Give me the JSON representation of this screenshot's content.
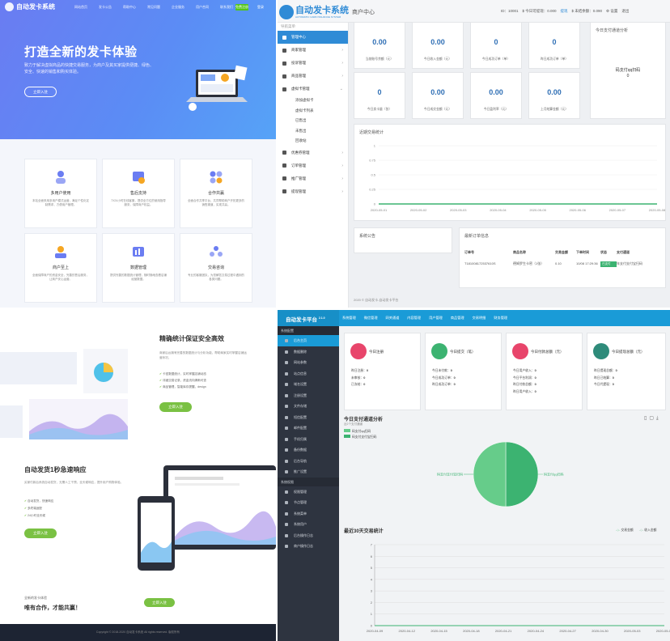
{
  "q1": {
    "brand": "自动发卡系统",
    "menu": [
      "网站首页",
      "发卡公告",
      "帮助中心",
      "常见问题",
      "企业服务",
      "用户合同",
      "联系我们"
    ],
    "register": "免费注册",
    "login": "登录",
    "hero_title": "打造全新的发卡体验",
    "hero_sub": "致力于解决虚拟商品的快捷交易服务，为商户及其买家提供便捷、绿色、安全、快速的销售和购买体验。",
    "hero_btn": "立即入驻",
    "features": [
      {
        "t": "多用户使用",
        "d": "本站全面采用多用户模式运营，满足个性化定制需求，方便用户管理。",
        "icon": "users-icon"
      },
      {
        "t": "售后支持",
        "d": "7X24小时在线客服，提供全方位的使用指导服务，保障商户权益。",
        "icon": "support-icon"
      },
      {
        "t": "合作共赢",
        "d": "全面合作共享平台，共同帮助商户开拓更多的销售渠道，实现共赢。",
        "icon": "cooperation-icon"
      },
      {
        "t": "商户至上",
        "d": "全面保障商户的资金安全，完善的售后服务，让商户安心运营。",
        "icon": "merchant-icon"
      },
      {
        "t": "数据管理",
        "d": "提供完善的数据统计管理，随时随地查看店铺经营数据。",
        "icon": "data-icon"
      },
      {
        "t": "交易咨询",
        "d": "专业的客服团队，为您解答交易过程中遇到的各类问题。",
        "icon": "consult-icon"
      }
    ]
  },
  "q2": {
    "logo_title": "自动发卡系统",
    "logo_sub": "AUTOMATIC CARD ISSUANCE SYSTEM",
    "header": "商户中心",
    "id": "ID：10001",
    "withdraw": "$ 今日可提现：0.000",
    "withdraw_link": "提现",
    "unsettled": "$ 未结余额：0.090",
    "settings": "⚙ 设置",
    "logout": "退出",
    "nav_head": "导航菜单",
    "menu": [
      {
        "l": "管理中心",
        "active": true
      },
      {
        "l": "商家管理",
        "arrow": "›"
      },
      {
        "l": "投诉管理",
        "arrow": "›"
      },
      {
        "l": "商品管理",
        "arrow": "›"
      },
      {
        "l": "虚拟卡管理",
        "arrow": "⌄"
      }
    ],
    "sub": [
      "添加虚拟卡",
      "虚拟卡列表",
      "已售出",
      "未售出",
      "回收站"
    ],
    "menu2": [
      {
        "l": "优惠券管理",
        "arrow": "›"
      },
      {
        "l": "订单管理",
        "arrow": "›"
      },
      {
        "l": "推广管理",
        "arrow": "›"
      },
      {
        "l": "提现管理",
        "arrow": "›"
      }
    ],
    "stats": [
      {
        "v": "0.00",
        "l": "当前账号余额（元）"
      },
      {
        "v": "0.00",
        "l": "今日收入金额（元）"
      },
      {
        "v": "0",
        "l": "今日成功订单（单）"
      },
      {
        "v": "0",
        "l": "昨日成功订单（单）"
      },
      {
        "v": "0",
        "l": "今日卖卡量（张）"
      },
      {
        "v": "0.00",
        "l": "今日成交金额（元）"
      },
      {
        "v": "0.00",
        "l": "今日盈利率（元）"
      },
      {
        "v": "0.00",
        "l": "上月结算金额（元）"
      }
    ],
    "pay_title": "今日支付通道分析",
    "pay_name": "码支付qq扫码",
    "pay_val": "0",
    "chart_title": "近期交易统计",
    "chart_yticks": [
      "1",
      "0.75",
      "0.5",
      "0.25",
      "0"
    ],
    "chart_dates": [
      "2020-05-01",
      "2020-05-02",
      "2020-05-03",
      "2020-05-04",
      "2020-05-05",
      "2020-05-06",
      "2020-05-07",
      "2020-05-08"
    ],
    "notice_title": "系统公告",
    "orders_title": "最新订单信息",
    "orders_head": [
      "订单号",
      "商品名称",
      "交易金额",
      "下单时间",
      "状态",
      "支付通道"
    ],
    "order": {
      "no": "T181008172537610S",
      "name": "德姆罗生卡密（1张）",
      "amount": "0.10",
      "time": "10/08 17:29:36",
      "status": "已支付",
      "channel": "年支付支付宝扫码"
    },
    "footer": "2020 © 自动发卡-自动发卡平台"
  },
  "q3": {
    "title1": "精确统计保证安全高效",
    "desc1": "商家后台拥有完善的数据统计与分析功能，帮助商家实时掌握店铺运营状况。",
    "list1": [
      "卡密数据统计，实时掌握店铺动态",
      "详细交易记录，资金流向清晰可查",
      "商品管理，智能库存提醒，design"
    ],
    "btn1": "立即入驻",
    "title2": "自动发货1秒急速响应",
    "desc2": "买家付款后系统自动发货，无需人工干预，全天候响应，提升用户购物体验。",
    "list2": [
      "自动发货，快速响应",
      "多终端适配",
      "24小时全天候"
    ],
    "btn2": "立即入驻",
    "bottom_sub": "全新的发卡体验",
    "bottom_title": "唯有合作，才能共赢！",
    "btn3": "立即入驻",
    "footer": "Copyright © 2018-2020 自动发卡系统 All rights reserved. 版权所有"
  },
  "q4": {
    "brand": "自动发卡平台",
    "version": "2.1.0",
    "menu": [
      "系统管理",
      "微信管理",
      "网关通道",
      "内容管理",
      "用户管理",
      "商品管理",
      "交易明细",
      "财务管理"
    ],
    "sec1": "系统配置",
    "items1": [
      "后台主页",
      "数据删除",
      "网站参数",
      "站点信息",
      "域名设置",
      "注册设置",
      "文件存储",
      "短信配置",
      "邮件配置",
      "手机归属",
      "备份数据",
      "后台导航",
      "推广设置"
    ],
    "sec2": "系统权限",
    "items2": [
      "权限管理",
      "节点管理",
      "系统菜单",
      "系统用户",
      "后台操作日志",
      "商户操作日志"
    ],
    "boxes": [
      {
        "t": "今日注册",
        "rows": [
          [
            "昨日注册：",
            "0"
          ],
          [
            "未审核：",
            "0"
          ],
          [
            "已冻结：",
            "0"
          ]
        ],
        "color": "#e8456b"
      },
      {
        "t": "今日提交（笔）",
        "rows": [
          [
            "今日未付款：",
            "0"
          ],
          [
            "今日成功订单：",
            "0"
          ],
          [
            "昨日成功订单：",
            "0"
          ]
        ],
        "color": "#3cb371"
      },
      {
        "t": "今日付款总额（元）",
        "rows": [
          [
            "今日用户收入：",
            "0"
          ],
          [
            "今日平台利润：",
            "0"
          ],
          [
            "昨日付款总额：",
            "0"
          ],
          [
            "昨日用户收入：",
            "0"
          ]
        ],
        "color": "#e8456b"
      },
      {
        "t": "今日提现总额（元）",
        "rows": [
          [
            "昨日提现总额：",
            "0"
          ],
          [
            "昨日已结算：",
            "0"
          ],
          [
            "今日代提现：",
            "0"
          ]
        ],
        "color": "#2e8b7a"
      }
    ],
    "pay_title": "今日支付通道分析",
    "pay_sub": "近2个支付通道",
    "pay_legend": [
      "码支付qq扫码",
      "码支付支付宝扫码"
    ],
    "slice_labels": [
      "码支付支付宝扫码",
      "码支付qq扫码"
    ],
    "trend_title": "最近30天交易统计",
    "trend_legend": [
      "交易金额",
      "收入金额"
    ],
    "trend_y": [
      "7",
      "6",
      "5",
      "4",
      "3",
      "2",
      "1",
      "0"
    ],
    "trend_dates": [
      "2020-04-09",
      "2020-04-12",
      "2020-04-15",
      "2020-04-18",
      "2020-04-21",
      "2020-04-24",
      "2020-04-27",
      "2020-04-30",
      "2020-05-03",
      "2020-05-06"
    ]
  },
  "chart_data": [
    {
      "type": "line",
      "title": "近期交易统计",
      "x": [
        "2020-05-01",
        "2020-05-02",
        "2020-05-03",
        "2020-05-04",
        "2020-05-05",
        "2020-05-06",
        "2020-05-07",
        "2020-05-08"
      ],
      "series": [
        {
          "values": [
            0,
            0,
            0,
            0,
            0,
            0,
            0,
            0
          ]
        }
      ],
      "ylim": [
        0,
        1
      ]
    },
    {
      "type": "pie",
      "title": "今日支付通道分析",
      "categories": [
        "码支付支付宝扫码",
        "码支付qq扫码"
      ],
      "values": [
        50,
        50
      ]
    },
    {
      "type": "line",
      "title": "最近30天交易统计",
      "x": [
        "2020-04-09",
        "2020-04-12",
        "2020-04-15",
        "2020-04-18",
        "2020-04-21",
        "2020-04-24",
        "2020-04-27",
        "2020-04-30",
        "2020-05-03",
        "2020-05-06"
      ],
      "series": [
        {
          "name": "交易金额",
          "values": [
            0,
            0,
            0,
            0,
            0,
            0,
            0,
            0,
            0,
            0
          ]
        },
        {
          "name": "收入金额",
          "values": [
            0,
            0,
            0,
            0,
            0,
            0,
            0,
            0,
            0,
            0
          ]
        }
      ],
      "ylim": [
        0,
        7
      ]
    }
  ]
}
